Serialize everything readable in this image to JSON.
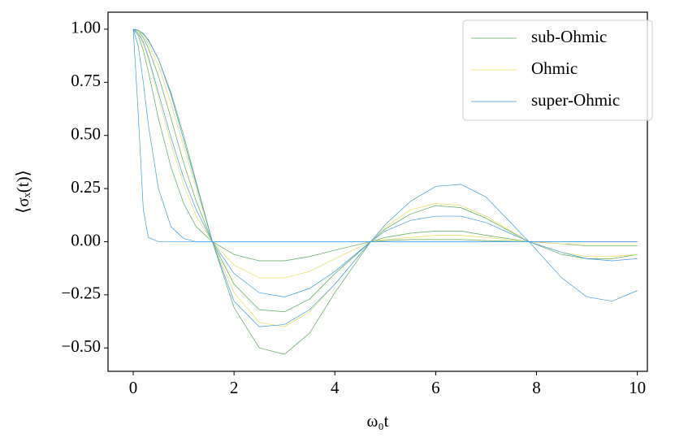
{
  "chart_data": {
    "type": "line",
    "xlabel": "ω₀t",
    "ylabel": "⟨σₓ(t)⟩",
    "x": [
      0,
      0.1,
      0.2,
      0.3,
      0.5,
      0.75,
      1,
      1.25,
      1.57,
      2,
      2.5,
      3,
      3.5,
      4,
      4.71,
      5,
      5.5,
      6,
      6.5,
      7,
      7.85,
      8.5,
      9,
      9.5,
      10
    ],
    "xlim": [
      -0.5,
      10.2
    ],
    "xticks": [
      0,
      2,
      4,
      6,
      8,
      10
    ],
    "ylim": [
      -0.61,
      1.08
    ],
    "yticks": [
      {
        "value": -0.5,
        "label": "−0.50"
      },
      {
        "value": -0.25,
        "label": "−0.25"
      },
      {
        "value": 0,
        "label": "0.00"
      },
      {
        "value": 0.25,
        "label": "0.25"
      },
      {
        "value": 0.5,
        "label": "0.50"
      },
      {
        "value": 0.75,
        "label": "0.75"
      },
      {
        "value": 1,
        "label": "1.00"
      }
    ],
    "legend": "upper right",
    "series": [
      {
        "name": "sub-Ohmic",
        "color": "#5aa85a",
        "curves": [
          [
            1,
            0.995,
            0.977,
            0.948,
            0.86,
            0.7,
            0.5,
            0.28,
            0,
            -0.31,
            -0.5,
            -0.53,
            -0.43,
            -0.24,
            0,
            0.06,
            0.13,
            0.17,
            0.16,
            0.11,
            0,
            -0.06,
            -0.08,
            -0.08,
            -0.06
          ],
          [
            1,
            0.99,
            0.96,
            0.91,
            0.78,
            0.58,
            0.37,
            0.19,
            0,
            -0.2,
            -0.32,
            -0.33,
            -0.27,
            -0.15,
            0,
            0.02,
            0.04,
            0.05,
            0.05,
            0.03,
            0,
            -0.01,
            -0.02,
            -0.02,
            -0.02
          ],
          [
            1,
            0.97,
            0.9,
            0.8,
            0.58,
            0.35,
            0.18,
            0.07,
            0,
            -0.06,
            -0.09,
            -0.09,
            -0.07,
            -0.04,
            0,
            0.005,
            0.01,
            0.01,
            0.01,
            0.005,
            0,
            0,
            0,
            0,
            0
          ]
        ]
      },
      {
        "name": "Ohmic",
        "color": "#e6dc5c",
        "curves": [
          [
            1,
            0.99,
            0.97,
            0.93,
            0.83,
            0.65,
            0.45,
            0.25,
            0,
            -0.24,
            -0.38,
            -0.4,
            -0.33,
            -0.2,
            0,
            0.07,
            0.15,
            0.18,
            0.17,
            0.12,
            0,
            -0.05,
            -0.07,
            -0.07,
            -0.06
          ],
          [
            1,
            0.98,
            0.93,
            0.86,
            0.68,
            0.46,
            0.27,
            0.12,
            0,
            -0.11,
            -0.17,
            -0.17,
            -0.14,
            -0.08,
            0,
            0.01,
            0.02,
            0.03,
            0.03,
            0.02,
            0,
            -0.01,
            -0.01,
            -0.01,
            -0.01
          ]
        ]
      },
      {
        "name": "super-Ohmic",
        "color": "#3d9be6",
        "curves": [
          [
            1,
            0.995,
            0.98,
            0.95,
            0.86,
            0.69,
            0.48,
            0.27,
            0,
            -0.28,
            -0.4,
            -0.39,
            -0.32,
            -0.2,
            0,
            0.08,
            0.19,
            0.26,
            0.27,
            0.21,
            0,
            -0.17,
            -0.26,
            -0.28,
            -0.23
          ],
          [
            1,
            0.98,
            0.94,
            0.87,
            0.7,
            0.49,
            0.3,
            0.15,
            0,
            -0.15,
            -0.24,
            -0.26,
            -0.22,
            -0.14,
            0,
            0.05,
            0.1,
            0.12,
            0.12,
            0.09,
            0,
            -0.05,
            -0.08,
            -0.09,
            -0.08
          ],
          [
            1,
            0.92,
            0.75,
            0.55,
            0.25,
            0.07,
            0.015,
            0,
            0,
            0,
            0,
            0,
            0,
            0,
            0,
            0,
            0,
            0,
            0,
            0,
            0,
            0,
            0,
            0,
            0
          ],
          [
            1,
            0.6,
            0.15,
            0.02,
            0,
            0,
            0,
            0,
            0,
            0,
            0,
            0,
            0,
            0,
            0,
            0,
            0,
            0,
            0,
            0,
            0,
            0,
            0,
            0,
            0
          ]
        ]
      }
    ]
  }
}
